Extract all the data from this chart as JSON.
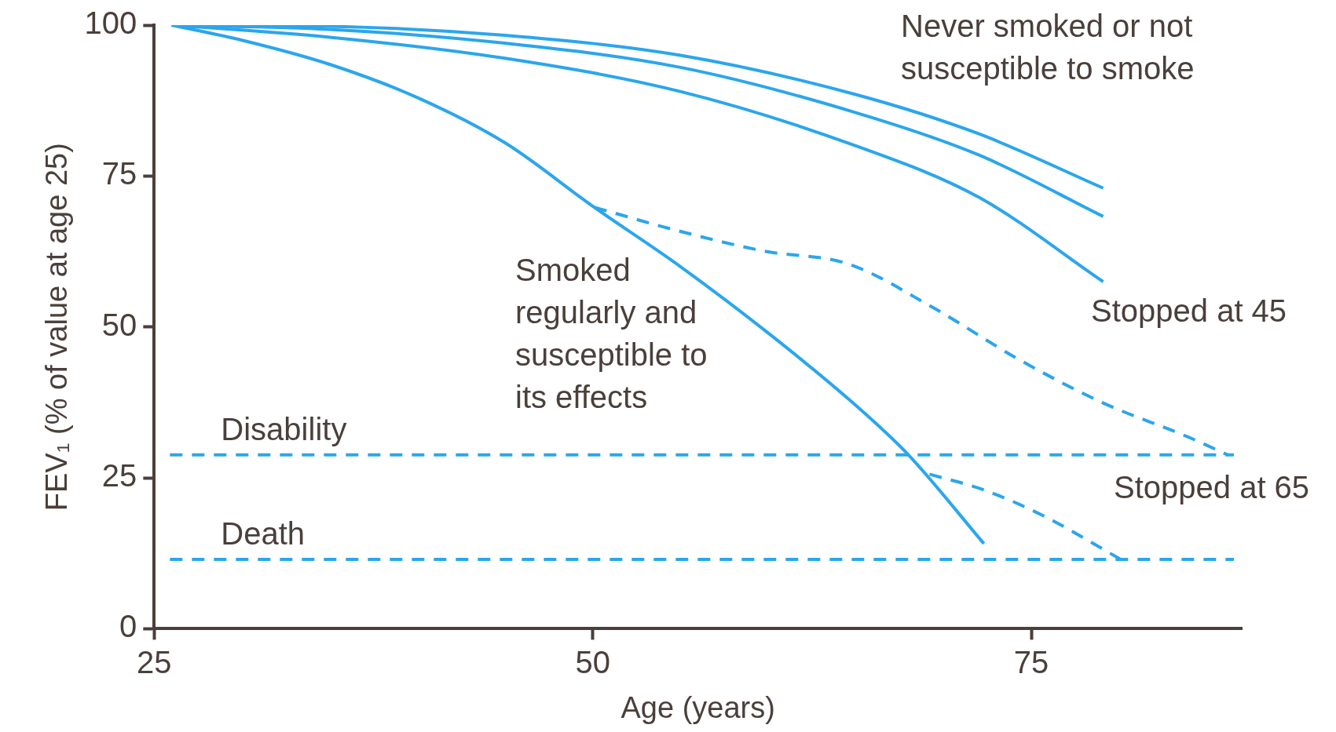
{
  "chart_data": {
    "type": "line",
    "xlabel": "Age (years)",
    "ylabel": "FEV₁ (% of value at age 25)",
    "xlim": [
      25,
      87
    ],
    "ylim": [
      0,
      100
    ],
    "xticks": [
      25,
      50,
      75
    ],
    "yticks": [
      0,
      25,
      50,
      75,
      100
    ],
    "grid": false,
    "legend": false,
    "marker": "none",
    "series": [
      {
        "color": "#2ba6ec",
        "line_style": "solid",
        "x": [
          26,
          35,
          45,
          55,
          65,
          72,
          79.1
        ],
        "values": [
          100,
          99.8,
          98.3,
          95,
          88.5,
          82,
          73
        ]
      },
      {
        "color": "#2ba6ec",
        "line_style": "solid",
        "x": [
          26,
          35,
          45,
          55,
          65,
          72,
          79.1
        ],
        "values": [
          100,
          99.3,
          97,
          93,
          85.5,
          78.5,
          68.3
        ]
      },
      {
        "color": "#2ba6ec",
        "line_style": "solid",
        "x": [
          26,
          35,
          45,
          55,
          65,
          72,
          79.1
        ],
        "values": [
          100,
          98,
          94.5,
          89,
          80,
          71.5,
          57.5
        ]
      },
      {
        "color": "#2ba6ec",
        "line_style": "solid",
        "x": [
          26,
          30,
          35,
          40,
          45,
          50,
          55,
          60,
          65,
          68,
          72.3
        ],
        "values": [
          100,
          97.5,
          93.5,
          88,
          80.5,
          70,
          60,
          49,
          37,
          28.8,
          14.1
        ]
      },
      {
        "color": "#2ba6ec",
        "line_style": "dashed",
        "x": [
          50.1,
          54.9,
          59.7,
          64.6,
          69.4,
          74.3,
          79.1,
          84,
          86.2
        ],
        "values": [
          69.8,
          65.9,
          62.6,
          60.4,
          53.2,
          44.6,
          37.4,
          31.7,
          28.8
        ]
      },
      {
        "color": "#2ba6ec",
        "line_style": "dashed",
        "x": [
          69.2,
          72.3,
          75.7,
          80.1
        ],
        "values": [
          25.6,
          23,
          18.7,
          11.5
        ]
      }
    ],
    "ref_lines": [
      {
        "axis": "y",
        "value": 28.8,
        "label": "Disability",
        "color": "#2ba6ec",
        "line_style": "dashed"
      },
      {
        "axis": "y",
        "value": 11.5,
        "label": "Death",
        "color": "#2ba6ec",
        "line_style": "dashed"
      }
    ],
    "annotations": [
      "Never smoked or not\nsusceptible to smoke",
      "Smoked\nregularly and\nsusceptible to\nits effects",
      "Stopped at 45",
      "Stopped at 65"
    ]
  }
}
